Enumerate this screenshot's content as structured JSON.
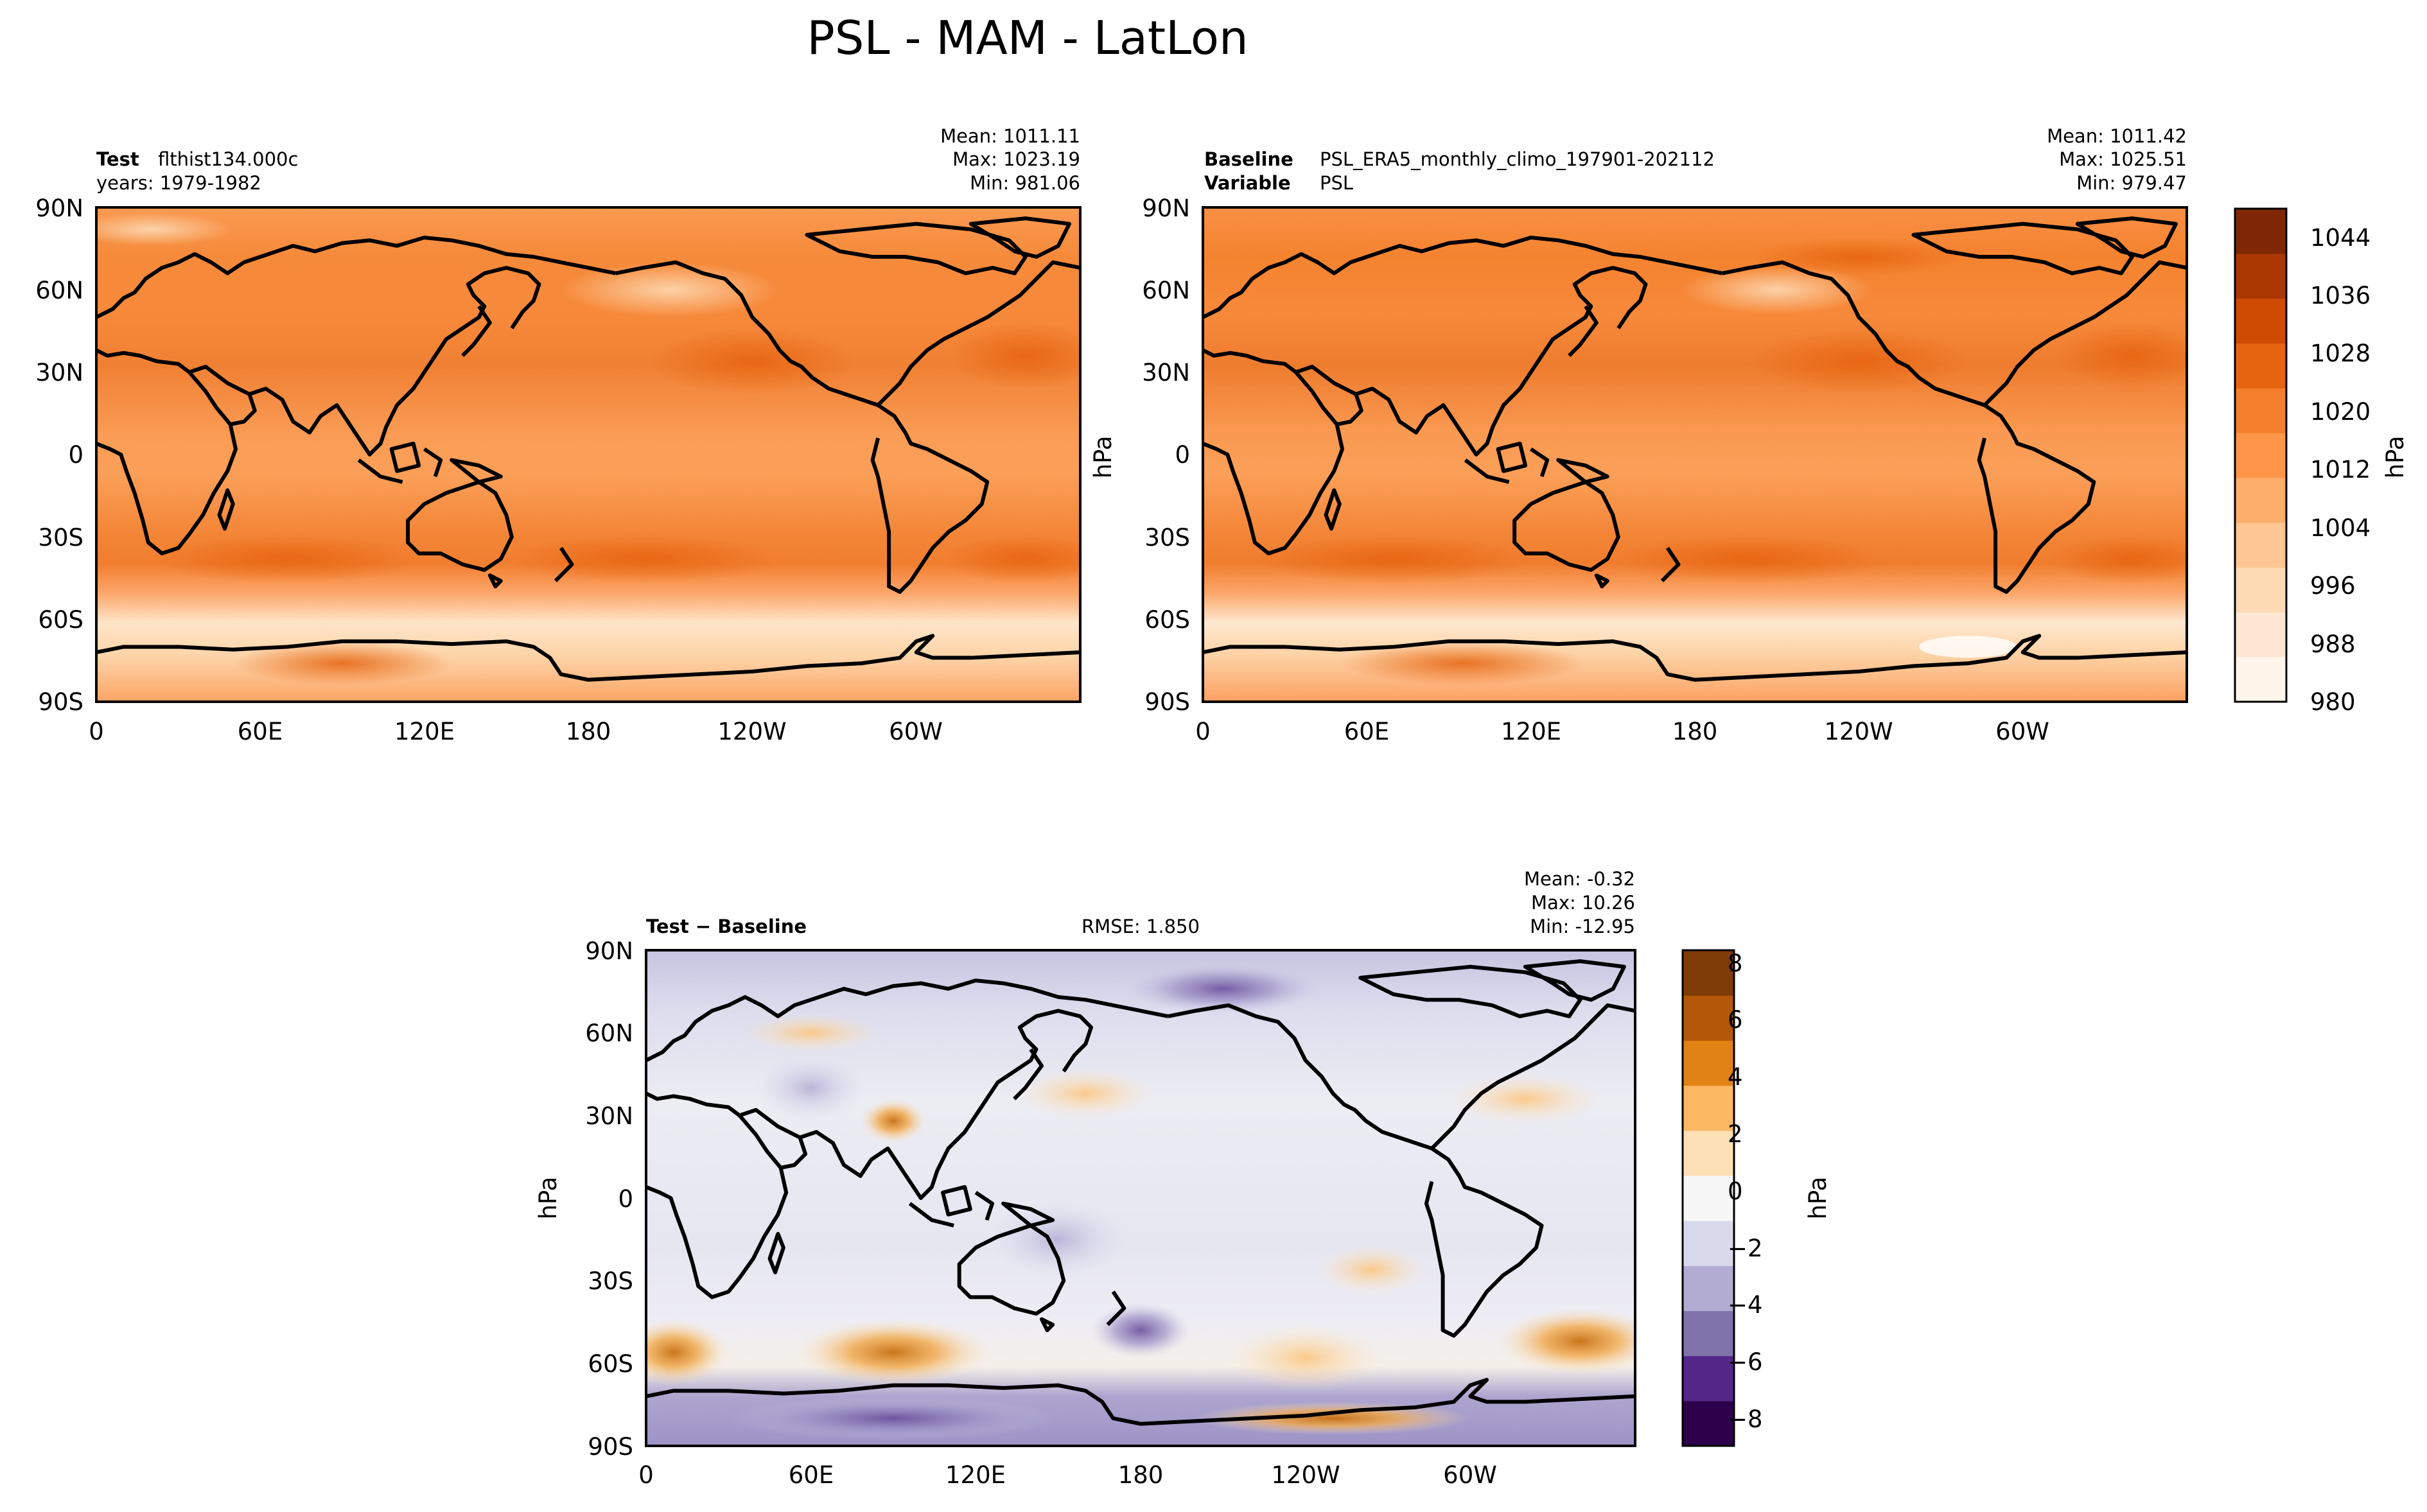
{
  "figure_title": "PSL - MAM - LatLon",
  "chart_data": [
    {
      "type": "heatmap",
      "panel": "test",
      "label_prefix": "Test",
      "label_value": "flthist134.000c",
      "subtitle": "years: 1979-1982",
      "stats": {
        "mean": "Mean: 1011.11",
        "max": "Max: 1023.19",
        "min": "Min: 981.06"
      },
      "ylabel": "",
      "x_ticks": [
        "0",
        "60E",
        "120E",
        "180",
        "120W",
        "60W"
      ],
      "y_ticks": [
        "90N",
        "60N",
        "30N",
        "0",
        "30S",
        "60S",
        "90S"
      ],
      "units": "hPa",
      "field_range": [
        981.06,
        1023.19
      ],
      "mean": 1011.11
    },
    {
      "type": "heatmap",
      "panel": "baseline",
      "label_prefix": "Baseline",
      "label_value": "PSL_ERA5_monthly_climo_197901-202112",
      "label2_prefix": "Variable",
      "label2_value": "PSL",
      "stats": {
        "mean": "Mean: 1011.42",
        "max": "Max: 1025.51",
        "min": "Min: 979.47"
      },
      "ylabel": "hPa",
      "x_ticks": [
        "0",
        "60E",
        "120E",
        "180",
        "120W",
        "60W"
      ],
      "y_ticks": [
        "90N",
        "60N",
        "30N",
        "0",
        "30S",
        "60S",
        "90S"
      ],
      "units": "hPa",
      "field_range": [
        979.47,
        1025.51
      ],
      "mean": 1011.42,
      "colorbar": {
        "label": "hPa",
        "range": [
          980,
          1048
        ],
        "ticks": [
          "980",
          "988",
          "996",
          "1004",
          "1012",
          "1020",
          "1028",
          "1036",
          "1044"
        ],
        "colors": [
          "#fff5eb",
          "#fee8d3",
          "#fdd9b4",
          "#fdc692",
          "#fdae6b",
          "#fd9649",
          "#f57f2c",
          "#e6630f",
          "#cf4b03",
          "#ab3803",
          "#7f2704"
        ]
      }
    },
    {
      "type": "heatmap",
      "panel": "difference",
      "label_prefix": "Test − Baseline",
      "rmse": "RMSE: 1.850",
      "stats": {
        "mean": "Mean: -0.32",
        "max": "Max: 10.26",
        "min": "Min: -12.95"
      },
      "ylabel": "hPa",
      "x_ticks": [
        "0",
        "60E",
        "120E",
        "180",
        "120W",
        "60W"
      ],
      "y_ticks": [
        "90N",
        "60N",
        "30N",
        "0",
        "30S",
        "60S",
        "90S"
      ],
      "units": "hPa",
      "field_range": [
        -12.95,
        10.26
      ],
      "mean": -0.32,
      "colorbar": {
        "label": "hPa",
        "range": [
          -9,
          8.5
        ],
        "ticks": [
          "−8",
          "−6",
          "−4",
          "−2",
          "0",
          "2",
          "4",
          "6",
          "8"
        ],
        "colors": [
          "#2d004b",
          "#542788",
          "#8073ac",
          "#b2abd2",
          "#d8daeb",
          "#f7f7f7",
          "#fee0b6",
          "#fdb863",
          "#e08214",
          "#b35806",
          "#7f3b08"
        ]
      }
    }
  ]
}
